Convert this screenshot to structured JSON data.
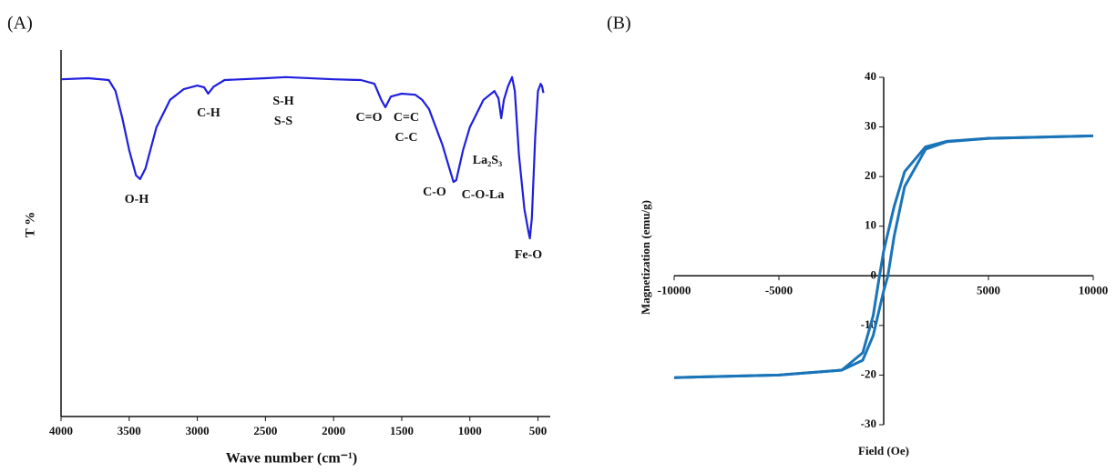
{
  "chart_data": [
    {
      "type": "line",
      "panel": "(A)",
      "xlabel": "Wave number (cm⁻¹)",
      "ylabel": "T %",
      "x": [
        4000,
        3800,
        3650,
        3600,
        3550,
        3500,
        3450,
        3420,
        3380,
        3300,
        3200,
        3100,
        3000,
        2950,
        2920,
        2880,
        2800,
        2500,
        2350,
        2000,
        1800,
        1700,
        1650,
        1620,
        1580,
        1500,
        1400,
        1350,
        1300,
        1250,
        1200,
        1150,
        1120,
        1100,
        1050,
        1000,
        900,
        820,
        790,
        770,
        750,
        720,
        690,
        670,
        640,
        600,
        570,
        560,
        545,
        520,
        500,
        480,
        470,
        460
      ],
      "series": [
        {
          "color": "#1f1fdd",
          "values": [
            92,
            92.3,
            91.8,
            88.8,
            81.4,
            72.7,
            65.8,
            64.8,
            67.7,
            78.9,
            86.4,
            89.3,
            90.3,
            89.8,
            88.1,
            90,
            91.8,
            92.3,
            92.6,
            92,
            91.8,
            90.8,
            86.4,
            84.4,
            87.3,
            88.1,
            87.8,
            86.4,
            83.9,
            78.9,
            74,
            67.7,
            64,
            64.5,
            72.7,
            78.9,
            86.4,
            88.8,
            86.8,
            81.4,
            86.4,
            90.1,
            92.6,
            88.8,
            71.5,
            56.6,
            50.4,
            48.6,
            54.1,
            76.4,
            88.8,
            90.8,
            90.1,
            88.3
          ]
        }
      ],
      "xlim": [
        4000,
        410
      ],
      "ylim": [
        0,
        100
      ],
      "xticks": [
        4000,
        3500,
        3000,
        2500,
        2000,
        1500,
        1000,
        500
      ],
      "annotations": [
        "O-H",
        "C-H",
        "S-H",
        "S-S",
        "C=O",
        "C=C",
        "C-C",
        "La₂S₃",
        "C-O",
        "C-O-La",
        "Fe-O"
      ]
    },
    {
      "type": "line",
      "panel": "(B)",
      "xlabel": "Field (Oe)",
      "ylabel": "Magnetization (emu/g)",
      "series": [
        {
          "color": "#1a74b8",
          "x": [
            10000,
            5000,
            3000,
            2000,
            1000,
            500,
            0,
            -200,
            -500,
            -1000,
            -2000,
            -5000,
            -10000
          ],
          "values": [
            28.2,
            27.7,
            27.1,
            26,
            21,
            14,
            5,
            0,
            -8,
            -15.5,
            -19,
            -20,
            -20.5
          ]
        },
        {
          "color": "#1a74b8",
          "x": [
            -10000,
            -5000,
            -2000,
            -1000,
            -500,
            0,
            200,
            500,
            1000,
            2000,
            3000,
            5000,
            10000
          ],
          "values": [
            -20.5,
            -20,
            -19,
            -17,
            -12,
            -3,
            0,
            8,
            18,
            25.5,
            27,
            27.7,
            28.2
          ]
        }
      ],
      "xlim": [
        -10000,
        10000
      ],
      "ylim": [
        -30,
        40
      ],
      "xticks": [
        -10000,
        -5000,
        5000,
        10000
      ],
      "yticks": [
        40,
        30,
        20,
        10,
        0,
        -10,
        -20,
        -30
      ]
    }
  ]
}
